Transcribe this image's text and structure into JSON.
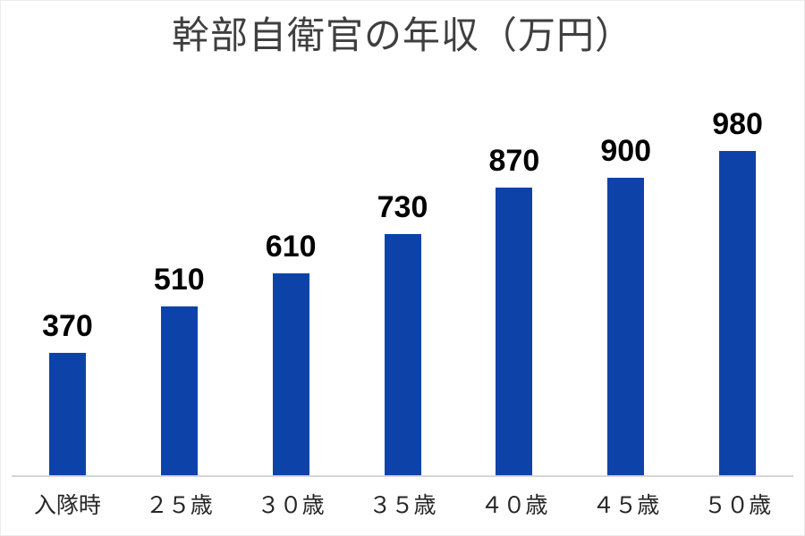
{
  "page": {
    "background": "#ffffff",
    "border_color": "#ececec"
  },
  "chart_data": {
    "type": "bar",
    "title": "幹部自衛官の年収（万円）",
    "categories": [
      "入隊時",
      "２５歳",
      "３０歳",
      "３５歳",
      "４０歳",
      "４５歳",
      "５０歳"
    ],
    "values": [
      370,
      510,
      610,
      730,
      870,
      900,
      980
    ],
    "value_labels": [
      "370",
      "510",
      "610",
      "730",
      "870",
      "900",
      "980"
    ],
    "xlabel": "",
    "ylabel": "",
    "ylim": [
      0,
      980
    ],
    "bar_color": "#0d43a8",
    "value_label_color": "#000000",
    "category_label_color": "#262626",
    "title_color": "#3f3f3f",
    "axis_line_color": "#d6d6d6",
    "grid": "off",
    "legend": "none",
    "y_axis_visible": false
  }
}
